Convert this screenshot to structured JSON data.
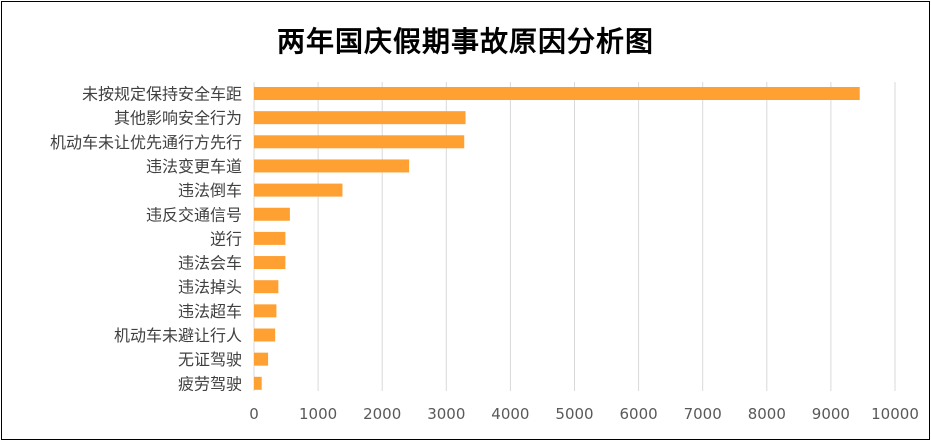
{
  "chart_data": {
    "type": "bar",
    "orientation": "horizontal",
    "title": "两年国庆假期事故原因分析图",
    "xlabel": "",
    "ylabel": "",
    "categories": [
      "未按规定保持安全车距",
      "其他影响安全行为",
      "机动车未让优先通行方先行",
      "违法变更车道",
      "违法倒车",
      "违反交通信号",
      "逆行",
      "违法会车",
      "违法掉头",
      "违法超车",
      "机动车未避让行人",
      "无证驾驶",
      "疲劳驾驶"
    ],
    "values": [
      9450,
      3300,
      3280,
      2420,
      1380,
      560,
      490,
      490,
      380,
      350,
      330,
      220,
      120
    ],
    "xlim": [
      0,
      10000
    ],
    "xticks": [
      "0",
      "1000",
      "2000",
      "3000",
      "4000",
      "5000",
      "6000",
      "7000",
      "8000",
      "9000",
      "10000"
    ],
    "grid": true,
    "legend": "none",
    "bar_color": "#FFA033",
    "grid_color": "#D9D9D9"
  }
}
